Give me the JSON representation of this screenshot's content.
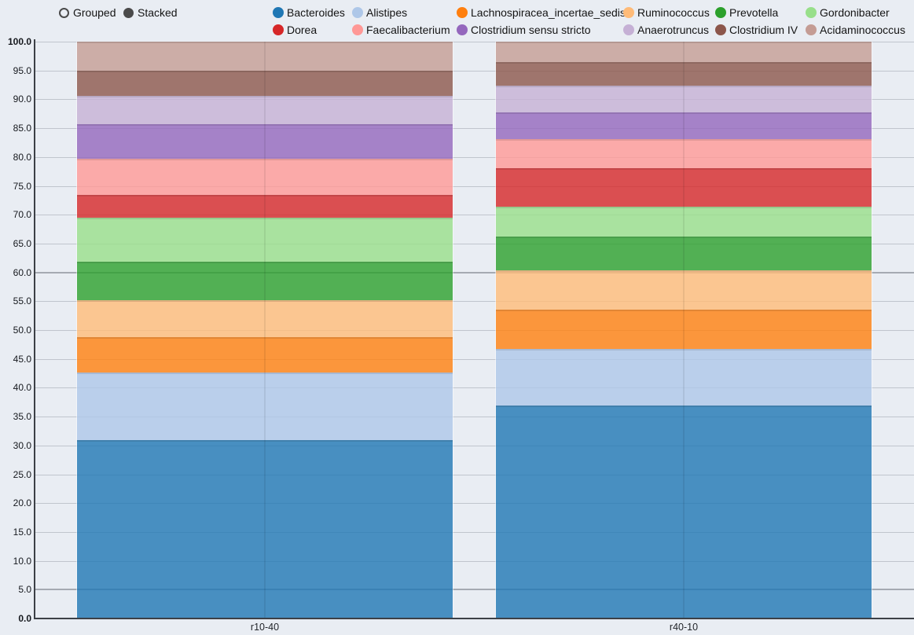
{
  "controls": {
    "radio_options": [
      {
        "label": "Grouped",
        "selected": false
      },
      {
        "label": "Stacked",
        "selected": true
      }
    ]
  },
  "chart_data": {
    "type": "bar",
    "mode": "stacked",
    "categories": [
      "r10-40",
      "r40-10"
    ],
    "series": [
      {
        "name": "Bacteroides",
        "color": "#1f77b4",
        "values": [
          30.9,
          36.9
        ]
      },
      {
        "name": "Alistipes",
        "color": "#aec7e8",
        "values": [
          11.8,
          9.9
        ]
      },
      {
        "name": "Lachnospiracea_incertae_sedis",
        "color": "#ff7f0e",
        "values": [
          6.1,
          6.8
        ]
      },
      {
        "name": "Ruminococcus",
        "color": "#ffbb78",
        "values": [
          6.4,
          6.7
        ]
      },
      {
        "name": "Prevotella",
        "color": "#2ca02c",
        "values": [
          6.6,
          5.9
        ]
      },
      {
        "name": "Gordonibacter",
        "color": "#98df8a",
        "values": [
          7.7,
          5.2
        ]
      },
      {
        "name": "Dorea",
        "color": "#d62728",
        "values": [
          4.0,
          6.7
        ]
      },
      {
        "name": "Faecalibacterium",
        "color": "#ff9896",
        "values": [
          6.2,
          5.0
        ]
      },
      {
        "name": "Clostridium sensu stricto",
        "color": "#9467bd",
        "values": [
          6.0,
          4.6
        ]
      },
      {
        "name": "Anaerotruncus",
        "color": "#c5b0d5",
        "values": [
          4.9,
          4.7
        ]
      },
      {
        "name": "Clostridium IV",
        "color": "#8c564b",
        "values": [
          4.3,
          4.1
        ]
      },
      {
        "name": "Acidaminococcus",
        "color": "#c49c94",
        "values": [
          5.1,
          3.5
        ]
      }
    ],
    "y_axis": {
      "min": 0,
      "max": 100,
      "tick_step": 5,
      "tick_decimals": 1,
      "bold_ticks": [
        0,
        100
      ],
      "emphasized_gridlines": [
        5,
        60
      ],
      "grid": true
    },
    "x_axis": {
      "tick_labels": [
        "r10-40",
        "r40-10"
      ]
    },
    "legend_position": "top",
    "bar_opacity": 0.8
  }
}
